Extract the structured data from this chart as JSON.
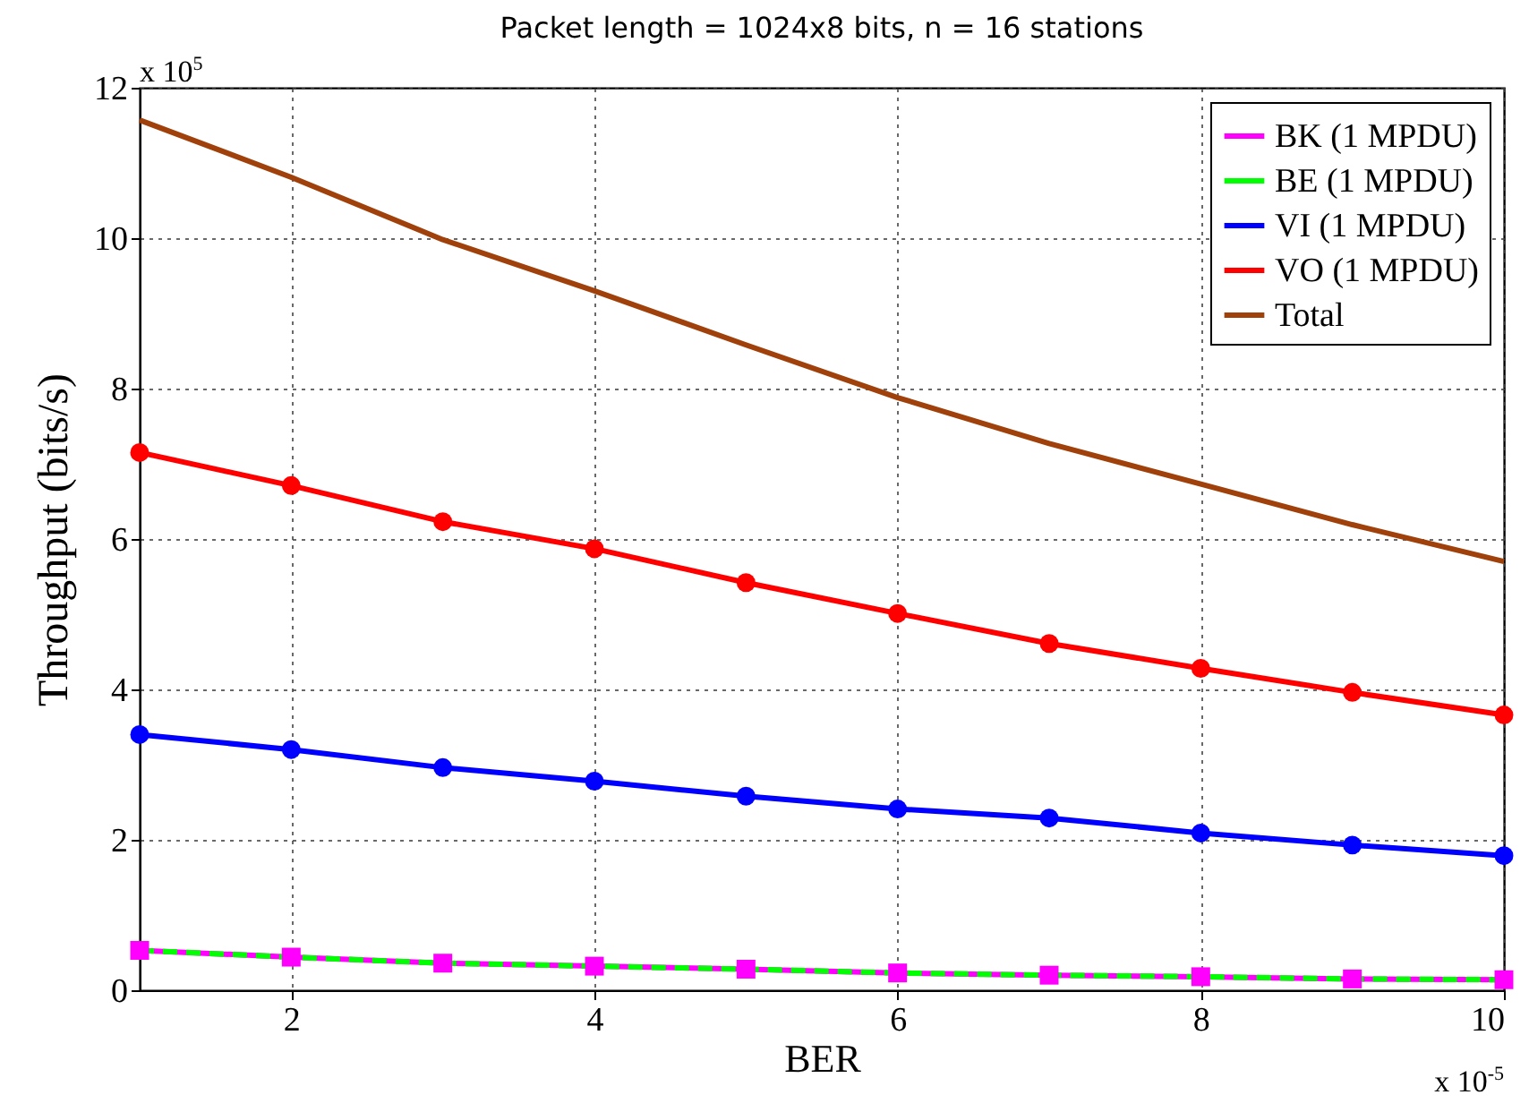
{
  "chart_data": {
    "type": "line",
    "title": "Packet length = 1024x8 bits, n = 16 stations",
    "xlabel": "BER",
    "ylabel": "Throughput (bits/s)",
    "annotations": [
      "x 10$^{5}$",
      "x 10$^{-5}$"
    ],
    "x": [
      1,
      2,
      3,
      4,
      5,
      6,
      7,
      8,
      9,
      10
    ],
    "series": [
      {
        "name": "BK (1 MPDU)",
        "color": "#ff00ff",
        "marker": "square",
        "line_style": "solid",
        "values": [
          0.53,
          0.44,
          0.36,
          0.32,
          0.28,
          0.23,
          0.2,
          0.18,
          0.15,
          0.14
        ]
      },
      {
        "name": "BE (1 MPDU)",
        "color": "#00ff00",
        "marker": "none",
        "line_style": "dashed",
        "values": [
          0.53,
          0.44,
          0.36,
          0.32,
          0.28,
          0.23,
          0.2,
          0.18,
          0.15,
          0.14
        ]
      },
      {
        "name": "VI (1 MPDU)",
        "color": "#0000ff",
        "marker": "circle",
        "line_style": "solid",
        "values": [
          3.4,
          3.2,
          2.96,
          2.78,
          2.58,
          2.41,
          2.29,
          2.09,
          1.93,
          1.79
        ]
      },
      {
        "name": "VO (1 MPDU)",
        "color": "#ff0000",
        "marker": "circle",
        "line_style": "solid",
        "values": [
          7.15,
          6.71,
          6.23,
          5.87,
          5.42,
          5.01,
          4.61,
          4.28,
          3.96,
          3.66
        ]
      },
      {
        "name": "Total",
        "color": "#a0400a",
        "marker": "none",
        "line_style": "solid",
        "values": [
          11.57,
          10.81,
          9.98,
          9.3,
          8.58,
          7.88,
          7.27,
          6.73,
          6.19,
          5.7
        ]
      }
    ],
    "xlim": [
      1,
      10
    ],
    "xticks": [
      2,
      4,
      6,
      8,
      10
    ],
    "ylim": [
      0,
      12
    ],
    "yticks": [
      0,
      2,
      4,
      6,
      8,
      10,
      12
    ],
    "grid": true,
    "legend": "top right"
  }
}
